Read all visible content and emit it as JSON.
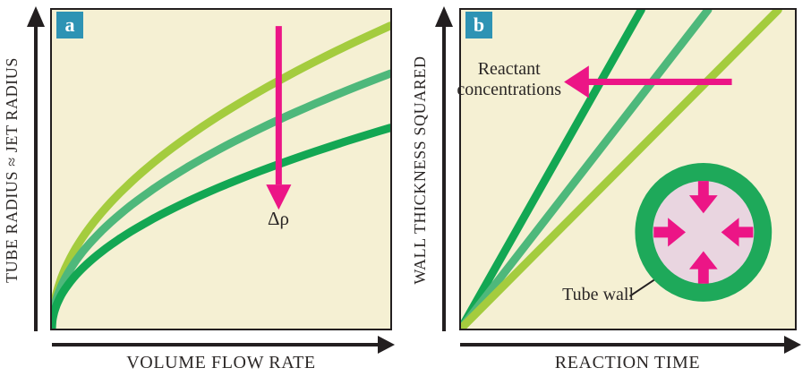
{
  "colors": {
    "background": "#ffffff",
    "panel_fill": "#f5f0d3",
    "frame": "#231f20",
    "light_green": "#a4cc3e",
    "medium_green": "#4eb87b",
    "dark_green": "#13a753",
    "pink": "#ec1586",
    "ring_green": "#1ea95a",
    "inset_inner": "#e9d5e0",
    "badge_bg": "#2e93b4",
    "badge_text": "#ffffff",
    "text": "#2b2726"
  },
  "panels": {
    "a": {
      "badge": "a"
    },
    "b": {
      "badge": "b"
    }
  },
  "chart_data": [
    {
      "panel": "a",
      "type": "line",
      "title": "",
      "xlabel": "VOLUME FLOW RATE",
      "ylabel": "TUBE RADIUS ≈ JET RADIUS",
      "x_range": [
        0,
        1
      ],
      "y_range": [
        0,
        1
      ],
      "grid": false,
      "legend": false,
      "axes_quantitative": false,
      "curve_shape": "sqrt",
      "annotation": {
        "text": "Δρ",
        "arrow_direction": "down",
        "arrow_color": "#ec1586"
      },
      "x": [
        0,
        0.1,
        0.2,
        0.3,
        0.4,
        0.5,
        0.6,
        0.7,
        0.8,
        0.9,
        1.0
      ],
      "series": [
        {
          "name": "light-green",
          "color": "#a4cc3e",
          "amplitude": 0.95,
          "values": [
            0,
            0.3,
            0.42,
            0.52,
            0.6,
            0.67,
            0.74,
            0.79,
            0.85,
            0.9,
            0.95
          ]
        },
        {
          "name": "medium-green",
          "color": "#4eb87b",
          "amplitude": 0.8,
          "values": [
            0,
            0.25,
            0.36,
            0.44,
            0.51,
            0.57,
            0.62,
            0.67,
            0.72,
            0.76,
            0.8
          ]
        },
        {
          "name": "dark-green",
          "color": "#13a753",
          "amplitude": 0.63,
          "values": [
            0,
            0.2,
            0.28,
            0.35,
            0.4,
            0.45,
            0.49,
            0.53,
            0.56,
            0.6,
            0.63
          ]
        }
      ]
    },
    {
      "panel": "b",
      "type": "line",
      "title": "",
      "xlabel": "REACTION TIME",
      "ylabel": "WALL THICKNESS SQUARED",
      "x_range": [
        0,
        1
      ],
      "y_range": [
        0,
        1
      ],
      "grid": false,
      "legend": false,
      "axes_quantitative": false,
      "curve_shape": "linear",
      "annotation": {
        "text": "Reactant concentrations",
        "line1": "Reactant",
        "line2": "concentrations",
        "arrow_direction": "left",
        "arrow_color": "#ec1586"
      },
      "series": [
        {
          "name": "dark-green",
          "color": "#13a753",
          "slope": 1.85,
          "points": [
            [
              0,
              0
            ],
            [
              0.54,
              1
            ]
          ]
        },
        {
          "name": "medium-green",
          "color": "#4eb87b",
          "slope": 1.35,
          "points": [
            [
              0,
              0
            ],
            [
              0.74,
              1
            ]
          ]
        },
        {
          "name": "light-green",
          "color": "#a4cc3e",
          "slope": 1.05,
          "points": [
            [
              0,
              0
            ],
            [
              0.95,
              1
            ]
          ]
        }
      ],
      "inset": {
        "label": "Tube wall"
      }
    }
  ]
}
